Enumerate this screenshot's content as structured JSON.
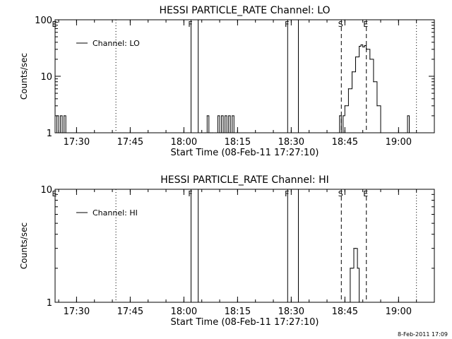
{
  "footer": {
    "stamp": "8-Feb-2011 17:09"
  },
  "chart_data": [
    {
      "type": "line",
      "title": "HESSI PARTICLE_RATE Channel: LO",
      "xlabel": "Start Time (08-Feb-11 17:27:10)",
      "ylabel": "Counts/sec",
      "y_scale": "log",
      "ylim": [
        1,
        100
      ],
      "y_tick_labels": [
        "1",
        "10",
        "100"
      ],
      "xlim": [
        "17:24",
        "19:10"
      ],
      "x_tick_labels": [
        "17:30",
        "17:45",
        "18:00",
        "18:15",
        "18:30",
        "18:45",
        "19:00"
      ],
      "legend": {
        "entries": [
          "Channel: LO"
        ],
        "placement": "top-left"
      },
      "markers": [
        {
          "label": "E",
          "time": "17:24",
          "style": "solid"
        },
        {
          "label": "",
          "time": "17:41",
          "style": "dotted"
        },
        {
          "label": "F",
          "time": "18:02",
          "style": "solid"
        },
        {
          "label": "",
          "time": "18:04",
          "style": "solid"
        },
        {
          "label": "F",
          "time": "18:29",
          "style": "solid"
        },
        {
          "label": "",
          "time": "18:32",
          "style": "solid"
        },
        {
          "label": "S",
          "time": "18:44",
          "style": "dashed"
        },
        {
          "label": "E",
          "time": "18:51",
          "style": "dashed"
        },
        {
          "label": "",
          "time": "19:05",
          "style": "dotted"
        }
      ],
      "series": [
        {
          "name": "Channel: LO",
          "x": [
            "17:24",
            "17:24:30",
            "17:25",
            "17:25:30",
            "17:26",
            "17:26:30",
            "17:27",
            "17:34",
            "18:06",
            "18:06:30",
            "18:07",
            "18:07:30",
            "18:08",
            "18:09",
            "18:09:30",
            "18:10",
            "18:10:30",
            "18:11",
            "18:11:30",
            "18:12",
            "18:12:30",
            "18:13",
            "18:13:30",
            "18:14",
            "18:40",
            "18:43",
            "18:43:30",
            "18:44",
            "18:44:30",
            "18:45",
            "18:46",
            "18:47",
            "18:48",
            "18:49",
            "18:49:30",
            "18:50",
            "18:50:30",
            "18:51",
            "18:52",
            "18:53",
            "18:54",
            "18:55",
            "19:00",
            "19:02",
            "19:02:30",
            "19:03"
          ],
          "y": [
            1,
            2,
            1,
            2,
            1,
            2,
            1,
            1,
            1,
            2,
            1,
            1,
            1,
            1,
            2,
            1,
            2,
            1,
            2,
            1,
            2,
            1,
            2,
            1,
            1,
            1,
            2,
            1,
            2,
            3,
            6,
            12,
            22,
            34,
            36,
            33,
            35,
            30,
            20,
            8,
            3,
            1,
            1,
            1,
            2,
            1
          ]
        }
      ]
    },
    {
      "type": "line",
      "title": "HESSI PARTICLE_RATE Channel: HI",
      "xlabel": "Start Time (08-Feb-11 17:27:10)",
      "ylabel": "Counts/sec",
      "y_scale": "log",
      "ylim": [
        1,
        10
      ],
      "y_tick_labels": [
        "1",
        "10"
      ],
      "xlim": [
        "17:24",
        "19:10"
      ],
      "x_tick_labels": [
        "17:30",
        "17:45",
        "18:00",
        "18:15",
        "18:30",
        "18:45",
        "19:00"
      ],
      "legend": {
        "entries": [
          "Channel: HI"
        ],
        "placement": "top-left"
      },
      "markers": [
        {
          "label": "E",
          "time": "17:24",
          "style": "solid"
        },
        {
          "label": "",
          "time": "17:41",
          "style": "dotted"
        },
        {
          "label": "F",
          "time": "18:02",
          "style": "solid"
        },
        {
          "label": "",
          "time": "18:04",
          "style": "solid"
        },
        {
          "label": "F",
          "time": "18:29",
          "style": "solid"
        },
        {
          "label": "",
          "time": "18:32",
          "style": "solid"
        },
        {
          "label": "S",
          "time": "18:44",
          "style": "dashed"
        },
        {
          "label": "E",
          "time": "18:51",
          "style": "dashed"
        },
        {
          "label": "",
          "time": "19:05",
          "style": "dotted"
        }
      ],
      "series": [
        {
          "name": "Channel: HI",
          "x": [
            "18:46",
            "18:46:30",
            "18:47",
            "18:47:30",
            "18:48",
            "18:48:30",
            "18:49",
            "18:49:30"
          ],
          "y": [
            1,
            2,
            2,
            3,
            3,
            2,
            1,
            1
          ]
        }
      ]
    }
  ]
}
